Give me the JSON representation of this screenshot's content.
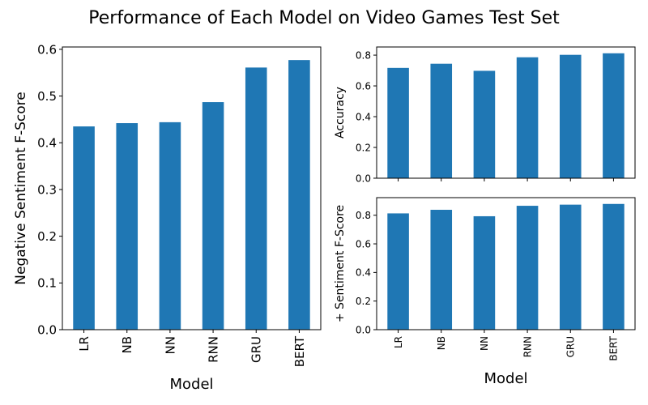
{
  "figure": {
    "suptitle": "Performance of Each Model on Video Games Test Set"
  },
  "chart_data": [
    {
      "type": "bar",
      "categories": [
        "LR",
        "NB",
        "NN",
        "RNN",
        "GRU",
        "BERT"
      ],
      "values": [
        0.435,
        0.442,
        0.444,
        0.487,
        0.561,
        0.577
      ],
      "xlabel": "Model",
      "ylabel": "Negative Sentiment F-Score",
      "ylim": [
        0,
        0.605
      ],
      "yticks": [
        0.0,
        0.1,
        0.2,
        0.3,
        0.4,
        0.5,
        0.6
      ],
      "ytick_labels": [
        "0.0",
        "0.1",
        "0.2",
        "0.3",
        "0.4",
        "0.5",
        "0.6"
      ],
      "bar_color": "#1f77b4",
      "grid": false
    },
    {
      "type": "bar",
      "categories": [
        "LR",
        "NB",
        "NN",
        "RNN",
        "GRU",
        "BERT"
      ],
      "values": [
        0.717,
        0.744,
        0.698,
        0.786,
        0.802,
        0.812
      ],
      "xlabel": "",
      "ylabel": "Accuracy",
      "ylim": [
        0,
        0.853
      ],
      "yticks": [
        0.0,
        0.2,
        0.4,
        0.6,
        0.8
      ],
      "ytick_labels": [
        "0.0",
        "0.2",
        "0.4",
        "0.6",
        "0.8"
      ],
      "bar_color": "#1f77b4",
      "grid": false
    },
    {
      "type": "bar",
      "categories": [
        "LR",
        "NB",
        "NN",
        "RNN",
        "GRU",
        "BERT"
      ],
      "values": [
        0.813,
        0.838,
        0.793,
        0.866,
        0.874,
        0.879
      ],
      "xlabel": "Model",
      "ylabel": "+ Sentiment F-Score",
      "ylim": [
        0,
        0.923
      ],
      "yticks": [
        0.0,
        0.2,
        0.4,
        0.6,
        0.8
      ],
      "ytick_labels": [
        "0.0",
        "0.2",
        "0.4",
        "0.6",
        "0.8"
      ],
      "bar_color": "#1f77b4",
      "grid": false
    }
  ]
}
